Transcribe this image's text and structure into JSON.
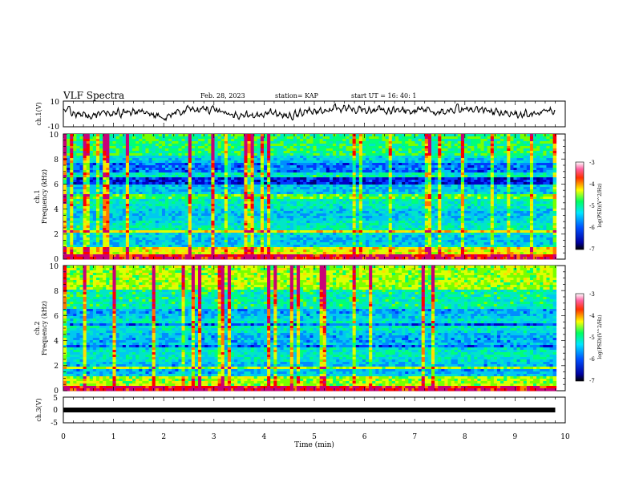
{
  "header": {
    "title": "VLF Spectra",
    "date": "Feb. 28, 2023",
    "station": "station= KAP",
    "start": "start  UT  =   16: 40: 1"
  },
  "colors": {
    "spec_low": "#0000c8",
    "spec_mid": "#00c8e6",
    "spec_high": "#ffff00",
    "spec_peak": "#ff0000"
  },
  "chart_data": [
    {
      "type": "line",
      "panel": "ch1",
      "ylabel": "ch.1(V)",
      "ylim": [
        -10,
        10
      ],
      "yticks": [
        "10",
        "-10"
      ],
      "x": [
        0,
        0.5,
        1,
        1.5,
        2,
        2.5,
        3,
        3.5,
        4,
        4.5,
        5,
        5.5,
        6,
        6.5,
        7,
        7.5,
        8,
        8.5,
        9,
        9.5,
        9.8
      ],
      "y": [
        4,
        -2,
        2,
        1,
        -3,
        3,
        4,
        -2,
        1,
        -1,
        3,
        5,
        4,
        2,
        3,
        1,
        4,
        2,
        -1,
        1,
        4
      ],
      "xlim": [
        0,
        10
      ]
    },
    {
      "type": "heatmap",
      "panel": "ch1-spectrogram",
      "ylabel": "ch.1\nFrequency (kHz)",
      "ylabel_top": "ch.1",
      "ylabel_bottom": "Frequency (kHz)",
      "ylim": [
        0,
        10
      ],
      "yticks": [
        "0",
        "2",
        "4",
        "6",
        "8",
        "10"
      ],
      "xlim": [
        0,
        10
      ],
      "colorbar": {
        "label": "log(PSD)(V^2/Hz)",
        "range": [
          -7,
          -3
        ],
        "ticks": [
          "-3",
          "-4",
          "-5",
          "-6",
          "-7"
        ]
      }
    },
    {
      "type": "heatmap",
      "panel": "ch2-spectrogram",
      "ylabel_top": "ch.2",
      "ylabel_bottom": "Frequency (kHz)",
      "ylim": [
        0,
        10
      ],
      "yticks": [
        "0",
        "2",
        "4",
        "6",
        "8",
        "10"
      ],
      "xlim": [
        0,
        10
      ],
      "colorbar": {
        "label": "log(PSD)(V^2/Hz)",
        "range": [
          -7,
          -3
        ],
        "ticks": [
          "-3",
          "-4",
          "-5",
          "-6",
          "-7"
        ]
      }
    },
    {
      "type": "line",
      "panel": "ch3",
      "ylabel": "ch.3(V)",
      "ylim": [
        -5,
        5
      ],
      "yticks": [
        "5",
        "0",
        "-5"
      ],
      "x": [
        0,
        9.8
      ],
      "y": [
        0,
        0
      ],
      "xlim": [
        0,
        10
      ],
      "xlabel": "Time  (min)",
      "xticks": [
        "0",
        "1",
        "2",
        "3",
        "4",
        "5",
        "6",
        "7",
        "8",
        "9",
        "10"
      ]
    }
  ]
}
